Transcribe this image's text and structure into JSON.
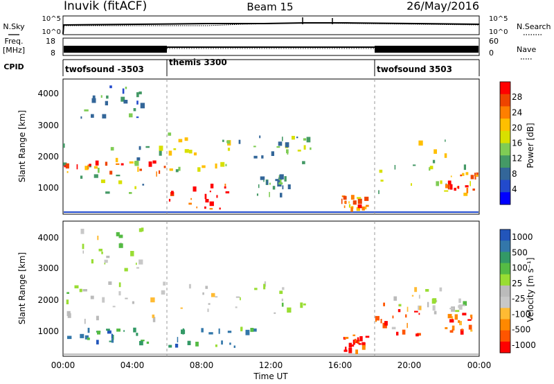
{
  "header": {
    "station": "Inuvik (fitACF)",
    "beam": "Beam 15",
    "date": "26/May/2016"
  },
  "side_labels": {
    "nsky": "N.Sky",
    "freq": "Freq.",
    "freq_unit": "[MHz]",
    "cpid": "CPID",
    "nsearch": "N.Search",
    "nave": "Nave"
  },
  "noise_axis": {
    "left_ticks": [
      "10^5",
      "10^0"
    ],
    "right_ticks": [
      "10^5",
      "10^0"
    ]
  },
  "freq_axis": {
    "left_ticks": [
      "18",
      "8"
    ],
    "right_ticks": [
      "60",
      "0"
    ]
  },
  "cpid_segments": [
    {
      "label": "twofsound -3503",
      "start_hour": 0,
      "end_hour": 6
    },
    {
      "label": "themis 3300",
      "start_hour": 6,
      "end_hour": 18
    },
    {
      "label": "twofsound 3503",
      "start_hour": 18,
      "end_hour": 24
    }
  ],
  "x_axis": {
    "label": "Time UT",
    "ticks": [
      "00:00",
      "04:00",
      "08:00",
      "12:00",
      "16:00",
      "20:00",
      "00:00"
    ]
  },
  "chart_data": [
    {
      "type": "heatmap",
      "panel": "power",
      "ylabel": "Slant Range [km]",
      "yticks": [
        "4000",
        "3000",
        "2000",
        "1000"
      ],
      "ylim": [
        180,
        4500
      ],
      "xlim_hours": [
        0,
        24
      ],
      "colorbar": {
        "label": "Power [dB]",
        "ticks": [
          "28",
          "24",
          "20",
          "16",
          "12",
          "8",
          "4"
        ],
        "colors": [
          "#ff0000",
          "#ee4400",
          "#ff7f00",
          "#ffbf00",
          "#d8e000",
          "#7fcc55",
          "#449966",
          "#336699",
          "#224acc",
          "#0000ff"
        ]
      },
      "regions": [
        {
          "t0": 0.0,
          "t1": 6.0,
          "r0": 600,
          "r1": 2600,
          "level": 0.45
        },
        {
          "t0": 0.0,
          "t1": 6.0,
          "r0": 1500,
          "r1": 1900,
          "level": 0.8
        },
        {
          "t0": 1.0,
          "t1": 4.5,
          "r0": 3300,
          "r1": 4300,
          "level": 0.3
        },
        {
          "t0": 6.0,
          "t1": 9.5,
          "r0": 200,
          "r1": 1200,
          "level": 0.9
        },
        {
          "t0": 6.0,
          "t1": 10.0,
          "r0": 1400,
          "r1": 2800,
          "level": 0.55
        },
        {
          "t0": 10.0,
          "t1": 14.5,
          "r0": 1800,
          "r1": 2700,
          "level": 0.4
        },
        {
          "t0": 11.0,
          "t1": 13.0,
          "r0": 800,
          "r1": 1500,
          "level": 0.35
        },
        {
          "t0": 16.0,
          "t1": 17.5,
          "r0": 400,
          "r1": 900,
          "level": 0.75
        },
        {
          "t0": 18.0,
          "t1": 24.0,
          "r0": 800,
          "r1": 2600,
          "level": 0.5
        },
        {
          "t0": 22.0,
          "t1": 24.0,
          "r0": 1000,
          "r1": 1600,
          "level": 0.8
        }
      ]
    },
    {
      "type": "heatmap",
      "panel": "velocity",
      "ylabel": "Slant Range [km]",
      "yticks": [
        "4000",
        "3000",
        "2000",
        "1000"
      ],
      "ylim": [
        180,
        4500
      ],
      "xlim_hours": [
        0,
        24
      ],
      "colorbar": {
        "label": "Velocity [m s⁻¹]",
        "ticks": [
          "1000",
          "500",
          "100",
          "25",
          "-25",
          "-100",
          "-500",
          "-1000"
        ],
        "colors": [
          "#2255bb",
          "#3377aa",
          "#339966",
          "#55bb44",
          "#99dd33",
          "#bbbbbb",
          "#c8c8c8",
          "#ffbb33",
          "#ff8800",
          "#ff5500",
          "#ff0000"
        ]
      },
      "regions": [
        {
          "t0": 0.0,
          "t1": 6.0,
          "r0": 1300,
          "r1": 2700,
          "level": 0.5
        },
        {
          "t0": 0.0,
          "t1": 5.0,
          "r0": 600,
          "r1": 1100,
          "level": 0.2
        },
        {
          "t0": 1.0,
          "t1": 4.5,
          "r0": 3000,
          "r1": 4300,
          "level": 0.5
        },
        {
          "t0": 6.0,
          "t1": 11.0,
          "r0": 500,
          "r1": 1200,
          "level": 0.25
        },
        {
          "t0": 6.0,
          "t1": 14.0,
          "r0": 1500,
          "r1": 2600,
          "level": 0.5
        },
        {
          "t0": 16.0,
          "t1": 17.5,
          "r0": 350,
          "r1": 900,
          "level": 0.85
        },
        {
          "t0": 18.0,
          "t1": 21.0,
          "r0": 800,
          "r1": 1900,
          "level": 0.8
        },
        {
          "t0": 19.0,
          "t1": 24.0,
          "r0": 1600,
          "r1": 2400,
          "level": 0.5
        },
        {
          "t0": 22.0,
          "t1": 24.0,
          "r0": 1000,
          "r1": 1600,
          "level": 0.85
        }
      ]
    }
  ]
}
